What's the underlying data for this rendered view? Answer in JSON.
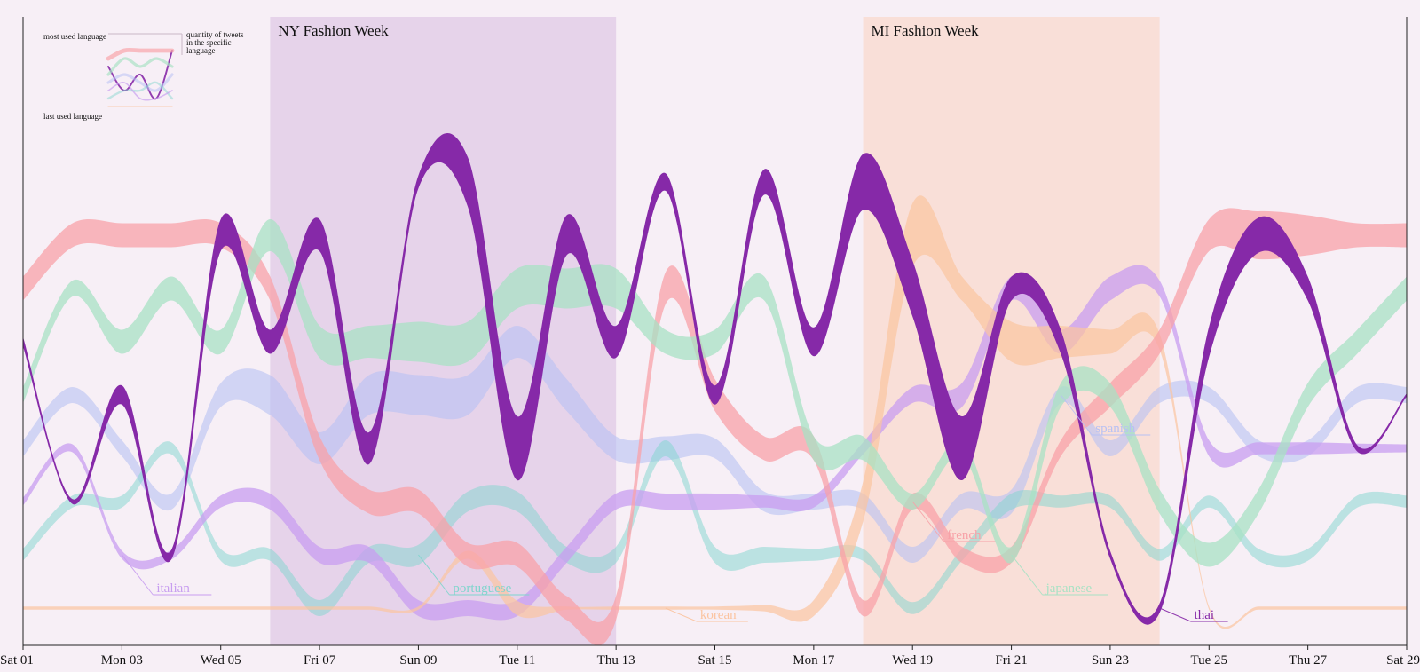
{
  "chart_data": {
    "type": "area",
    "x_range": [
      "2022-10-01",
      "2022-10-29"
    ],
    "x_ticks": [
      "Sat 01",
      "Mon 03",
      "Wed 05",
      "Fri 07",
      "Sun 09",
      "Tue 11",
      "Thu 13",
      "Sat 15",
      "Mon 17",
      "Wed 19",
      "Fri 21",
      "Sun 23",
      "Tue 25",
      "Thu 27",
      "Sat 29"
    ],
    "events": [
      {
        "label": "NY Fashion Week",
        "start": "2022-10-06",
        "end": "2022-10-13",
        "color": "#e6d3ea"
      },
      {
        "label": "MI Fashion Week",
        "start": "2022-10-18",
        "end": "2022-10-24",
        "color": "#f9dfd8"
      }
    ],
    "legend": {
      "top_label": "most used language",
      "bottom_label": "last used language",
      "side_label": [
        "quantity of tweets",
        "in the specific",
        "language"
      ]
    },
    "series": [
      {
        "name": "thai",
        "color": "#8629a8",
        "opacity": 1.0,
        "emphasis": true,
        "rank": [
          3,
          6,
          4,
          7,
          1,
          3,
          1,
          5,
          0,
          0,
          5,
          1,
          3,
          0,
          4,
          0,
          3,
          0,
          2,
          5,
          2,
          3,
          7,
          8,
          3,
          1,
          2,
          5,
          4
        ],
        "width": [
          1.2,
          0.6,
          2.4,
          1.2,
          4,
          3,
          4,
          4,
          1.6,
          6.2,
          8,
          5,
          4,
          2.2,
          2.4,
          3.2,
          3.6,
          7,
          7,
          8,
          3,
          3,
          1,
          1.2,
          3.8,
          4.4,
          3,
          0.8,
          0.4
        ]
      },
      {
        "name": "spanish",
        "color": "#b8c1f3",
        "opacity": 0.6,
        "rank": [
          5,
          4,
          5,
          6,
          4,
          4,
          5,
          4,
          4,
          4,
          3,
          4,
          5,
          5,
          5,
          6,
          6,
          6,
          7,
          6,
          6,
          4,
          5,
          4,
          4,
          5,
          5,
          4,
          4
        ],
        "width": [
          2,
          2,
          2,
          2,
          3,
          5,
          4,
          5,
          5,
          5,
          4,
          4,
          3,
          3,
          2.5,
          2.5,
          2,
          2,
          2,
          2,
          3,
          2,
          2,
          2,
          2,
          2,
          2,
          2,
          2
        ]
      },
      {
        "name": "portuguese",
        "color": "#7fd5cd",
        "opacity": 0.5,
        "rank": [
          7,
          6,
          6,
          5,
          7,
          7,
          8,
          7,
          7,
          6,
          6,
          7,
          7,
          5,
          7,
          7,
          7,
          7,
          8,
          7,
          6,
          6,
          6,
          7,
          6,
          7,
          7,
          6,
          6
        ],
        "width": [
          1.5,
          1.5,
          1.5,
          1.5,
          1.5,
          1.5,
          2,
          2,
          2.5,
          2.5,
          2.5,
          2,
          2,
          2,
          2,
          2,
          1.5,
          1.5,
          1.5,
          1.5,
          2,
          1.5,
          1.5,
          1.5,
          1.5,
          1.5,
          1.5,
          1.5,
          1.5
        ]
      },
      {
        "name": "italian",
        "color": "#c89ef0",
        "opacity": 0.75,
        "rank": [
          6,
          5,
          7,
          7,
          6,
          6,
          7,
          7,
          8,
          8,
          8,
          7,
          6,
          6,
          6,
          6,
          6,
          5,
          4,
          4,
          2,
          3,
          2,
          2,
          5,
          5,
          5,
          5,
          5
        ],
        "width": [
          1,
          1,
          1,
          1.2,
          1.5,
          2,
          2,
          2,
          2,
          2,
          2,
          2,
          2,
          2,
          2,
          1.5,
          1.5,
          1.5,
          2,
          3,
          3,
          3,
          3,
          2,
          2,
          1.5,
          1.5,
          1.2,
          1
        ]
      },
      {
        "name": "korean",
        "color": "#fbc4a0",
        "opacity": 0.7,
        "rank": [
          8,
          8,
          8,
          8,
          8,
          8,
          8,
          8,
          8,
          7,
          8,
          8,
          8,
          8,
          8,
          8,
          8,
          6,
          1,
          2,
          3,
          3,
          3,
          3,
          8,
          8,
          8,
          8,
          8
        ],
        "width": [
          0.4,
          0.4,
          0.4,
          0.4,
          0.4,
          0.4,
          0.4,
          0.4,
          0.4,
          1,
          1.8,
          0.4,
          0.4,
          0.4,
          0.4,
          0.8,
          2,
          5,
          8,
          3,
          5,
          4,
          3,
          2,
          0.4,
          0.4,
          0.4,
          0.4,
          0.4
        ]
      },
      {
        "name": "french",
        "color": "#f8a2a8",
        "opacity": 0.75,
        "rank": [
          2,
          1,
          1,
          1,
          1,
          2,
          5,
          6,
          6,
          7,
          7,
          8,
          8,
          2,
          4,
          5,
          5,
          8,
          6,
          7,
          7,
          5,
          4,
          3,
          1,
          1,
          1,
          1,
          1
        ],
        "width": [
          3,
          3,
          3,
          3,
          3,
          3,
          3,
          3,
          3,
          3,
          3,
          3,
          3,
          4,
          4,
          3,
          3,
          2,
          2,
          2,
          2,
          2,
          3,
          3,
          4,
          6,
          5,
          3,
          3
        ]
      },
      {
        "name": "japanese",
        "color": "#a8e2c4",
        "opacity": 0.75,
        "rank": [
          4,
          2,
          3,
          2,
          3,
          1,
          3,
          3,
          3,
          3,
          2,
          2,
          2,
          3,
          3,
          2,
          5,
          5,
          6,
          5,
          7,
          4,
          4,
          6,
          7,
          6,
          4,
          3,
          2
        ],
        "width": [
          2,
          2,
          3,
          3,
          3,
          4,
          4,
          4,
          5,
          5,
          5,
          5,
          5,
          3,
          3,
          3,
          3,
          3,
          2,
          2,
          2,
          3,
          3,
          3,
          3,
          3,
          3,
          3,
          3
        ]
      }
    ],
    "series_labels": [
      {
        "name": "italian",
        "date": "2022-10-02.6"
      },
      {
        "name": "portuguese",
        "date": "2022-10-08.5"
      },
      {
        "name": "korean",
        "date": "2022-10-14"
      },
      {
        "name": "french",
        "date": "2022-10-19.2"
      },
      {
        "name": "japanese",
        "date": "2022-10-21.2"
      },
      {
        "name": "spanish",
        "date": "2022-10-22"
      },
      {
        "name": "thai",
        "date": "2022-10-23.5"
      }
    ]
  }
}
